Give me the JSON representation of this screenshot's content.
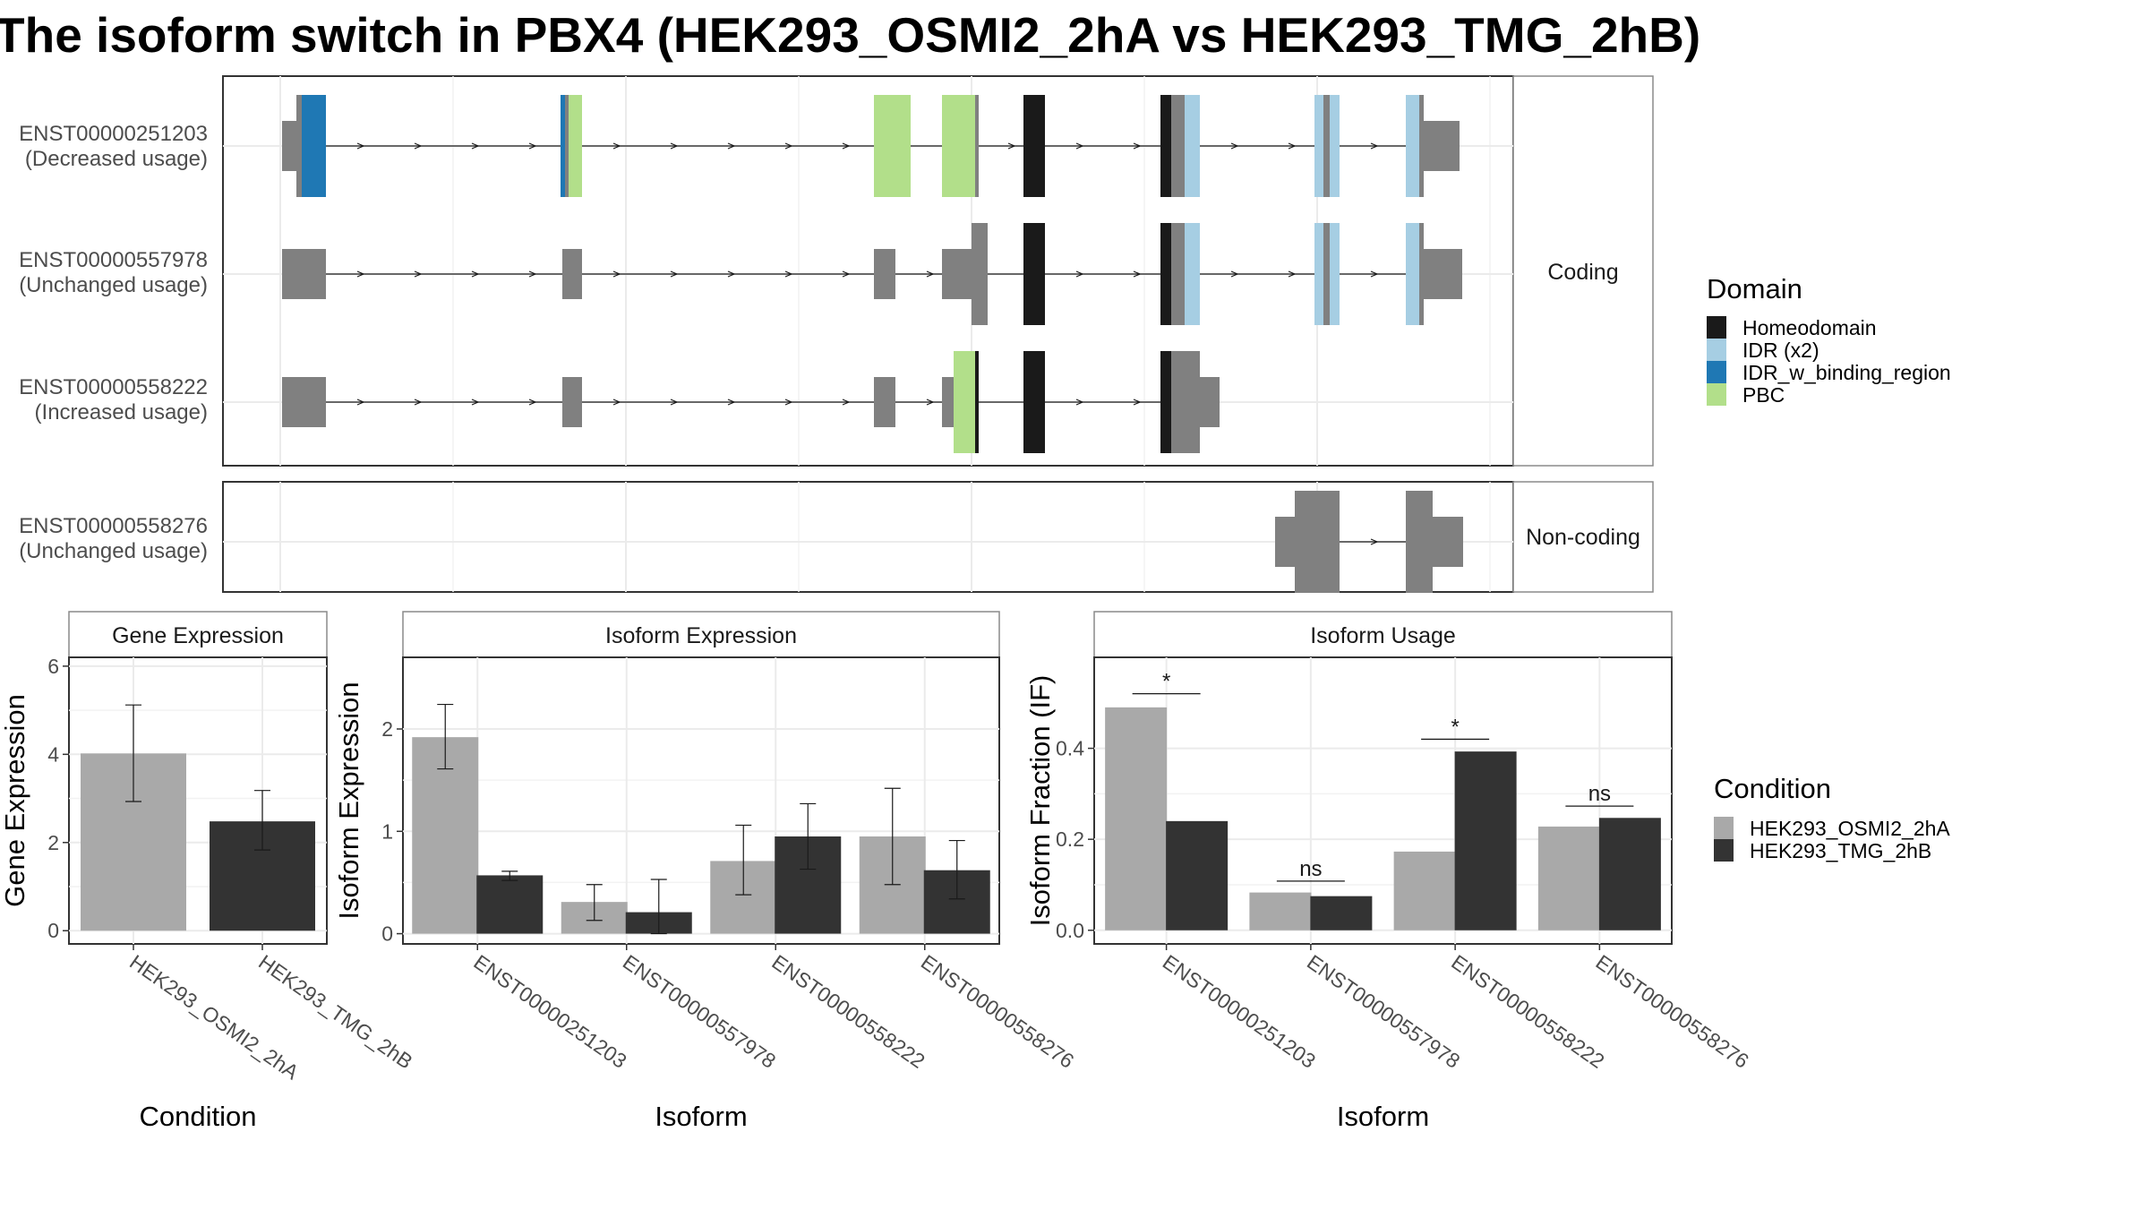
{
  "title": "The isoform switch in PBX4 (HEK293_OSMI2_2hA vs HEK293_TMG_2hB)",
  "colors": {
    "Homeodomain": "#1a1a1a",
    "IDR (x2)": "#a6cee3",
    "IDR_w_binding_region": "#1f78b4",
    "PBC": "#b2df8a",
    "exon_default": "#808080",
    "HEK293_OSMI2_2hA": "#a9a9a9",
    "HEK293_TMG_2hB": "#333333"
  },
  "transcripts": {
    "facets": [
      "Coding",
      "Non-coding"
    ],
    "rows": [
      {
        "id": "ENST00000251203",
        "usage": "(Decreased usage)",
        "facet": "Coding"
      },
      {
        "id": "ENST00000557978",
        "usage": "(Unchanged usage)",
        "facet": "Coding"
      },
      {
        "id": "ENST00000558222",
        "usage": "(Increased usage)",
        "facet": "Coding"
      },
      {
        "id": "ENST00000558276",
        "usage": "(Unchanged usage)",
        "facet": "Non-coding"
      }
    ]
  },
  "legend_domain": {
    "title": "Domain",
    "items": [
      "Homeodomain",
      "IDR (x2)",
      "IDR_w_binding_region",
      "PBC"
    ]
  },
  "legend_condition": {
    "title": "Condition",
    "items": [
      "HEK293_OSMI2_2hA",
      "HEK293_TMG_2hB"
    ]
  },
  "chart_data": [
    {
      "type": "bar",
      "strip": "Gene Expression",
      "xlabel": "Condition",
      "ylabel": "Gene Expression",
      "ylim": [
        -0.3,
        6.2
      ],
      "yticks": [
        0,
        2,
        4,
        6
      ],
      "categories": [
        "HEK293_OSMI2_2hA",
        "HEK293_TMG_2hB"
      ],
      "values": [
        4.02,
        2.48
      ],
      "error_low": [
        2.93,
        1.83
      ],
      "error_high": [
        5.12,
        3.18
      ]
    },
    {
      "type": "bar",
      "strip": "Isoform Expression",
      "xlabel": "Isoform",
      "ylabel": "Isoform Expression",
      "ylim": [
        -0.1,
        2.7
      ],
      "yticks": [
        0,
        1,
        2
      ],
      "categories": [
        "ENST00000251203",
        "ENST00000557978",
        "ENST00000558222",
        "ENST00000558276"
      ],
      "series": [
        {
          "name": "HEK293_OSMI2_2hA",
          "values": [
            1.92,
            0.31,
            0.71,
            0.95
          ],
          "error_low": [
            1.61,
            0.13,
            0.38,
            0.48
          ],
          "error_high": [
            2.24,
            0.48,
            1.06,
            1.42
          ]
        },
        {
          "name": "HEK293_TMG_2hB",
          "values": [
            0.57,
            0.21,
            0.95,
            0.62
          ],
          "error_low": [
            0.52,
            0.0,
            0.63,
            0.34
          ],
          "error_high": [
            0.61,
            0.53,
            1.27,
            0.91
          ]
        }
      ]
    },
    {
      "type": "bar",
      "strip": "Isoform Usage",
      "xlabel": "Isoform",
      "ylabel": "Isoform Fraction (IF)",
      "ylim": [
        -0.03,
        0.6
      ],
      "yticks": [
        0.0,
        0.2,
        0.4
      ],
      "ytick_labels": [
        "0.0",
        "0.2",
        "0.4"
      ],
      "categories": [
        "ENST00000251203",
        "ENST00000557978",
        "ENST00000558222",
        "ENST00000558276"
      ],
      "series": [
        {
          "name": "HEK293_OSMI2_2hA",
          "values": [
            0.49,
            0.083,
            0.173,
            0.228
          ]
        },
        {
          "name": "HEK293_TMG_2hB",
          "values": [
            0.24,
            0.075,
            0.393,
            0.247
          ]
        }
      ],
      "significance": [
        {
          "category": "ENST00000251203",
          "label": "*",
          "y": 0.52
        },
        {
          "category": "ENST00000557978",
          "label": "ns",
          "y": 0.108
        },
        {
          "category": "ENST00000558222",
          "label": "*",
          "y": 0.42
        },
        {
          "category": "ENST00000558276",
          "label": "ns",
          "y": 0.273
        }
      ]
    }
  ]
}
